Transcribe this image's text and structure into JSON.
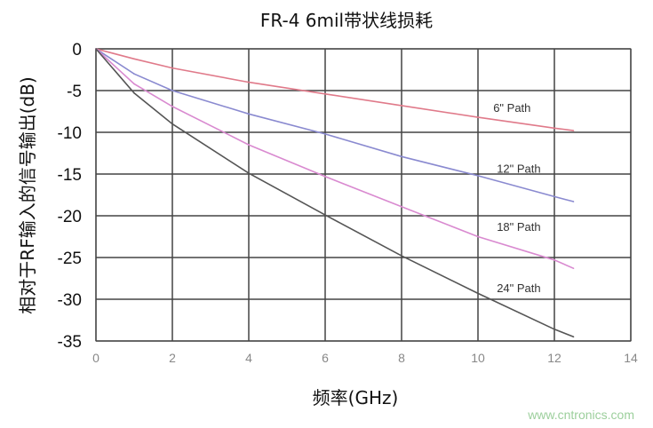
{
  "chart_data": {
    "type": "line",
    "title": "FR-4 6mil带状线损耗",
    "xlabel": "频率(GHz)",
    "ylabel": "相对于RF输入的信号输出(dB)",
    "xlim": [
      0,
      14
    ],
    "ylim": [
      -35,
      0
    ],
    "xticks": [
      "0",
      "2",
      "4",
      "6",
      "8",
      "10",
      "12",
      "14"
    ],
    "yticks": [
      "0",
      "-5",
      "-10",
      "-15",
      "-20",
      "-25",
      "-30",
      "-35"
    ],
    "grid": true,
    "x": [
      0,
      1,
      2,
      4,
      6,
      8,
      10,
      12,
      12.5
    ],
    "series": [
      {
        "name": "6\" Path",
        "color": "#e07a8a",
        "values": [
          0,
          -1.2,
          -2.3,
          -4.0,
          -5.4,
          -6.8,
          -8.2,
          -9.5,
          -9.8
        ]
      },
      {
        "name": "12\" Path",
        "color": "#8a8ad0",
        "values": [
          0,
          -3.0,
          -5.0,
          -7.8,
          -10.2,
          -12.9,
          -15.2,
          -17.7,
          -18.3
        ]
      },
      {
        "name": "18\" Path",
        "color": "#d98ad0",
        "values": [
          0,
          -4.2,
          -6.9,
          -11.5,
          -15.3,
          -18.9,
          -22.5,
          -25.3,
          -26.3
        ]
      },
      {
        "name": "24\" Path",
        "color": "#555555",
        "values": [
          0,
          -5.3,
          -9.0,
          -14.9,
          -19.9,
          -24.8,
          -29.3,
          -33.6,
          -34.5
        ]
      }
    ],
    "legend": "inline-right"
  },
  "watermark": "www.cntronics.com"
}
